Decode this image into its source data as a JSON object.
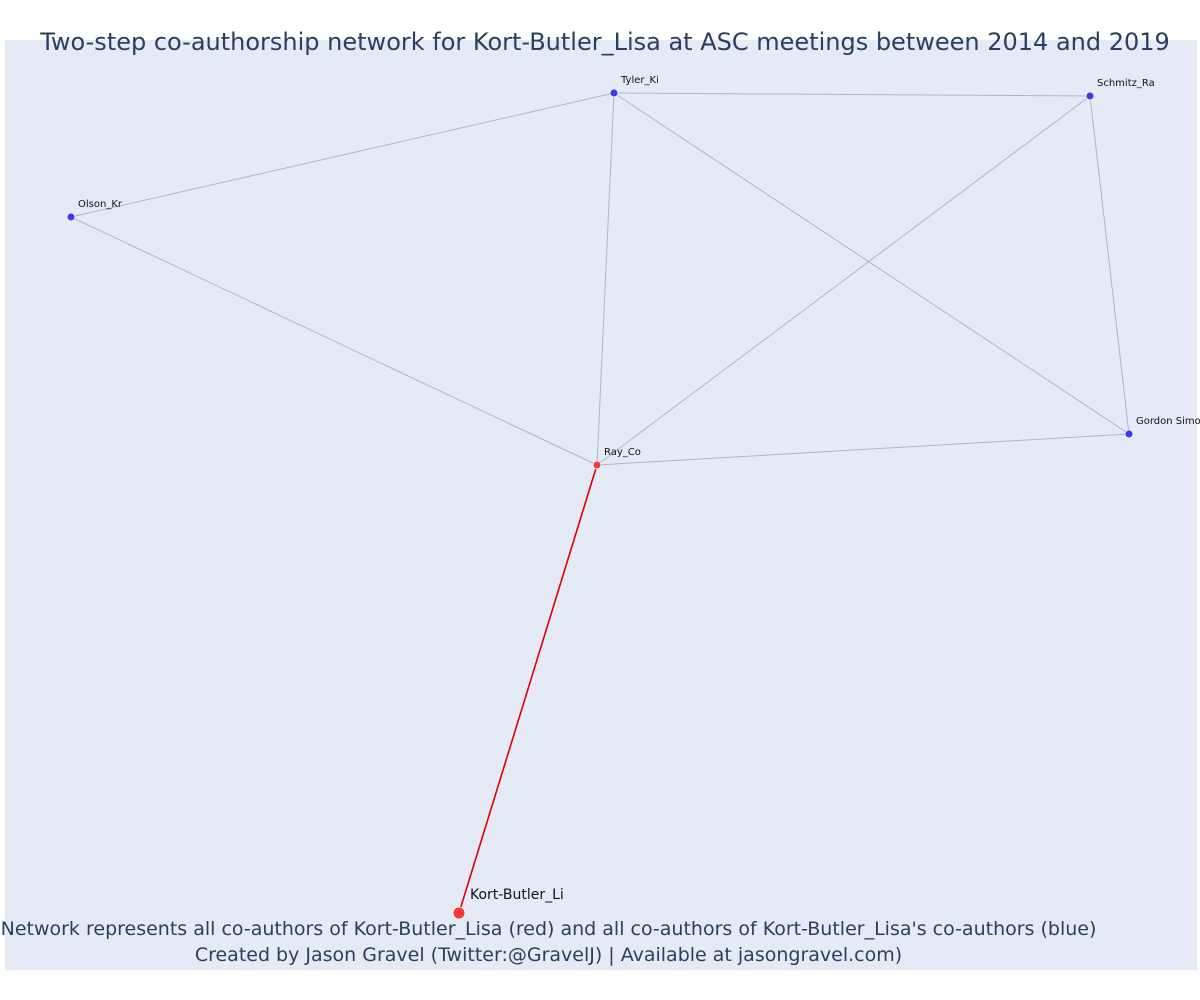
{
  "title": "Two-step co-authorship network for Kort-Butler_Lisa at ASC meetings between 2014 and 2019",
  "footer": {
    "line1": "Network represents all co-authors of Kort-Butler_Lisa (red) and all co-authors of Kort-Butler_Lisa's co-authors (blue)",
    "line2": "Created by Jason Gravel (Twitter:@GravelJ) | Available at jasongravel.com)"
  },
  "colors": {
    "ego": "#ef3b3b",
    "direct": "#ef3b3b",
    "indirect": "#3b3bef",
    "edge": "#b0b3c6",
    "ego_edge": "#e00000",
    "background": "#e5ebf6"
  },
  "network": {
    "nodes": [
      {
        "id": "kort",
        "label": "Kort-Butler_Li",
        "group": "ego"
      },
      {
        "id": "ray",
        "label": "Ray_Co",
        "group": "direct"
      },
      {
        "id": "tyler",
        "label": "Tyler_Ki",
        "group": "indirect"
      },
      {
        "id": "schmitz",
        "label": "Schmitz_Ra",
        "group": "indirect"
      },
      {
        "id": "olson",
        "label": "Olson_Kr",
        "group": "indirect"
      },
      {
        "id": "gordon",
        "label": "Gordon Simo",
        "group": "indirect"
      }
    ],
    "edges": [
      [
        "kort",
        "ray"
      ],
      [
        "ray",
        "olson"
      ],
      [
        "ray",
        "tyler"
      ],
      [
        "ray",
        "schmitz"
      ],
      [
        "ray",
        "gordon"
      ],
      [
        "olson",
        "tyler"
      ],
      [
        "tyler",
        "schmitz"
      ],
      [
        "tyler",
        "gordon"
      ],
      [
        "schmitz",
        "gordon"
      ]
    ]
  }
}
